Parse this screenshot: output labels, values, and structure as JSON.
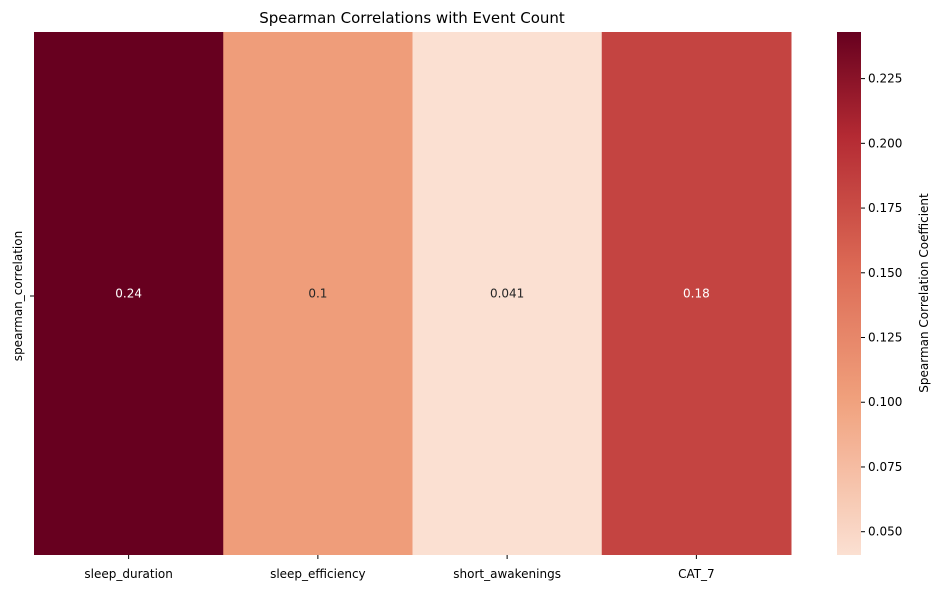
{
  "chart_data": {
    "type": "heatmap",
    "title": "Spearman Correlations with Event Count",
    "xlabel": "",
    "ylabel": "",
    "row_labels": [
      "spearman_correlation"
    ],
    "categories": [
      "sleep_duration",
      "sleep_efficiency",
      "short_awakenings",
      "CAT_7"
    ],
    "values": [
      0.243,
      0.104,
      0.041,
      0.182
    ],
    "cell_labels": [
      "0.24",
      "0.1",
      "0.041",
      "0.18"
    ],
    "colormap": "Reds (light to dark)",
    "vmin": 0.041,
    "vmax": 0.243,
    "colorbar": {
      "label": "Spearman Correlation Coefficient",
      "ticks": [
        "0.050",
        "0.075",
        "0.100",
        "0.125",
        "0.150",
        "0.175",
        "0.200",
        "0.225"
      ],
      "tick_values": [
        0.05,
        0.075,
        0.1,
        0.125,
        0.15,
        0.175,
        0.2,
        0.225
      ]
    },
    "colors": {
      "low": "#fbe0d2",
      "mid_low": "#f0a07c",
      "mid": "#dc6a55",
      "high": "#b42a33",
      "max": "#67001f"
    }
  }
}
